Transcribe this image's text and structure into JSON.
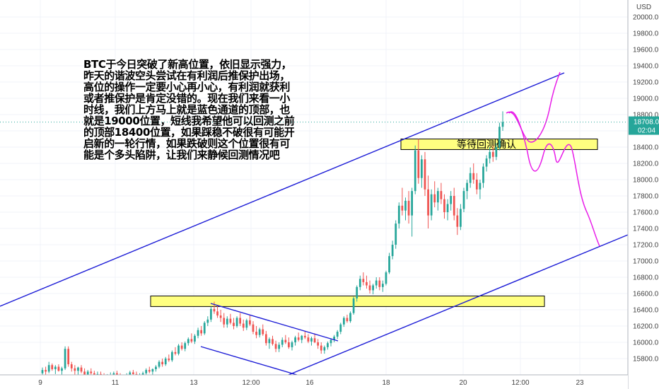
{
  "chart_data": {
    "type": "candlestick",
    "symbol": "BTCUSD",
    "currency_label": "USD",
    "price_axis": {
      "min": 15700,
      "max": 20350,
      "ticks": [
        15800,
        16000,
        16200,
        16400,
        16600,
        16800,
        17000,
        17200,
        17400,
        17600,
        17800,
        18000,
        18200,
        18400,
        18600,
        18800,
        19000,
        19200,
        19400,
        19600,
        19800,
        20000
      ],
      "tick_labels": [
        "15800.0",
        "16000.0",
        "16200.0",
        "16400.0",
        "16600.0",
        "16800.0",
        "17000.0",
        "17200.0",
        "17400.0",
        "17600.0",
        "17800.0",
        "18000.0",
        "18200.0",
        "18400.0",
        "18600.0",
        "18800.0",
        "19000.0",
        "19200.0",
        "19400.0",
        "19600.0",
        "19800.0",
        "20000.0"
      ],
      "current_price": 18708.0,
      "current_price_label": "18708.0",
      "countdown_label": "02:04"
    },
    "time_axis": {
      "labels": [
        "9",
        "11",
        "13",
        "12:00",
        "16",
        "18",
        "20",
        "12:00",
        "23"
      ]
    },
    "annotation_text": "BTC于今日突破了新高位置，依旧显示强力，昨天的谐波空头尝试在有利润后推保护出场，高位的操作一定要小心再小心，有利润就获利或者推保护是肯定没错的。现在我们来看一小时线，我们上方马上就是蓝色通道的顶部，也就是19000位置，短线我希望他可以回测之前的顶部18400位置，如果踩稳不破很有可能开启新的一轮行情，如果跌破则这个位置很有可能是个多头陷阱，让我们来静候回测情况吧",
    "zones": [
      {
        "low": 18370,
        "high": 18500,
        "label": "等待回测确认"
      },
      {
        "low": 16440,
        "high": 16570,
        "label": ""
      }
    ],
    "candles": [
      [
        15620,
        15690,
        15560,
        15660
      ],
      [
        15660,
        15700,
        15600,
        15640
      ],
      [
        15640,
        15760,
        15620,
        15720
      ],
      [
        15720,
        15740,
        15650,
        15670
      ],
      [
        15670,
        15720,
        15610,
        15700
      ],
      [
        15700,
        15730,
        15640,
        15650
      ],
      [
        15650,
        15700,
        15580,
        15680
      ],
      [
        15680,
        15950,
        15660,
        15920
      ],
      [
        15920,
        15950,
        15700,
        15730
      ],
      [
        15730,
        15760,
        15640,
        15680
      ],
      [
        15680,
        15720,
        15600,
        15650
      ],
      [
        15650,
        15700,
        15580,
        15690
      ],
      [
        15690,
        15720,
        15620,
        15640
      ],
      [
        15640,
        15680,
        15560,
        15600
      ],
      [
        15600,
        15660,
        15560,
        15640
      ],
      [
        15640,
        15680,
        15580,
        15620
      ],
      [
        15620,
        15650,
        15540,
        15580
      ],
      [
        15580,
        15640,
        15540,
        15610
      ],
      [
        15610,
        15640,
        15560,
        15590
      ],
      [
        15590,
        15620,
        15530,
        15560
      ],
      [
        15560,
        15610,
        15520,
        15590
      ],
      [
        15590,
        15630,
        15550,
        15600
      ],
      [
        15600,
        15640,
        15560,
        15620
      ],
      [
        15620,
        15650,
        15570,
        15590
      ],
      [
        15590,
        15620,
        15540,
        15560
      ],
      [
        15560,
        15600,
        15520,
        15580
      ],
      [
        15580,
        15620,
        15540,
        15600
      ],
      [
        15600,
        15650,
        15570,
        15630
      ],
      [
        15630,
        15660,
        15580,
        15610
      ],
      [
        15610,
        15640,
        15560,
        15580
      ],
      [
        15580,
        15620,
        15540,
        15600
      ],
      [
        15600,
        15640,
        15570,
        15620
      ],
      [
        15620,
        15680,
        15600,
        15660
      ],
      [
        15660,
        15700,
        15620,
        15640
      ],
      [
        15640,
        15680,
        15600,
        15670
      ],
      [
        15670,
        15720,
        15640,
        15700
      ],
      [
        15700,
        15780,
        15680,
        15760
      ],
      [
        15760,
        15800,
        15700,
        15730
      ],
      [
        15730,
        15820,
        15710,
        15800
      ],
      [
        15800,
        15850,
        15760,
        15780
      ],
      [
        15780,
        15900,
        15760,
        15880
      ],
      [
        15880,
        15940,
        15840,
        15860
      ],
      [
        15860,
        15980,
        15840,
        15960
      ],
      [
        15960,
        16000,
        15900,
        15920
      ],
      [
        15920,
        16010,
        15890,
        15990
      ],
      [
        15990,
        16060,
        15960,
        16040
      ],
      [
        16040,
        16110,
        15990,
        16010
      ],
      [
        16010,
        16100,
        15980,
        16080
      ],
      [
        16080,
        16180,
        16050,
        16150
      ],
      [
        16150,
        16200,
        16080,
        16110
      ],
      [
        16110,
        16260,
        16090,
        16240
      ],
      [
        16240,
        16320,
        16200,
        16280
      ],
      [
        16280,
        16440,
        16250,
        16410
      ],
      [
        16410,
        16500,
        16350,
        16380
      ],
      [
        16380,
        16460,
        16300,
        16330
      ],
      [
        16330,
        16400,
        16250,
        16300
      ],
      [
        16300,
        16360,
        16180,
        16220
      ],
      [
        16220,
        16320,
        16180,
        16290
      ],
      [
        16290,
        16350,
        16220,
        16240
      ],
      [
        16240,
        16300,
        16160,
        16200
      ],
      [
        16200,
        16320,
        16180,
        16300
      ],
      [
        16300,
        16360,
        16200,
        16230
      ],
      [
        16230,
        16280,
        16140,
        16180
      ],
      [
        16180,
        16290,
        16150,
        16270
      ],
      [
        16270,
        16330,
        16200,
        16220
      ],
      [
        16220,
        16260,
        16100,
        16130
      ],
      [
        16130,
        16200,
        16050,
        16090
      ],
      [
        16090,
        16180,
        16060,
        16160
      ],
      [
        16160,
        16220,
        16080,
        16100
      ],
      [
        16100,
        16140,
        15960,
        15990
      ],
      [
        15990,
        16060,
        15920,
        16040
      ],
      [
        16040,
        16080,
        15960,
        15980
      ],
      [
        15980,
        16020,
        15880,
        15920
      ],
      [
        15920,
        16000,
        15880,
        15970
      ],
      [
        15970,
        16060,
        15940,
        16030
      ],
      [
        16030,
        16090,
        15980,
        16000
      ],
      [
        16000,
        16060,
        15920,
        15940
      ],
      [
        15940,
        16020,
        15900,
        16000
      ],
      [
        16000,
        16080,
        15960,
        16060
      ],
      [
        16060,
        16120,
        16010,
        16030
      ],
      [
        16030,
        16090,
        15990,
        16080
      ],
      [
        16080,
        16140,
        16040,
        16060
      ],
      [
        16060,
        16100,
        15990,
        16010
      ],
      [
        16010,
        16070,
        15960,
        16050
      ],
      [
        16050,
        16110,
        15990,
        16000
      ],
      [
        16000,
        16040,
        15920,
        15960
      ],
      [
        15960,
        16000,
        15860,
        15900
      ],
      [
        15900,
        15960,
        15860,
        15940
      ],
      [
        15940,
        16010,
        15910,
        15990
      ],
      [
        15990,
        16050,
        15950,
        16030
      ],
      [
        16030,
        16090,
        16000,
        16070
      ],
      [
        16070,
        16150,
        16040,
        16130
      ],
      [
        16130,
        16240,
        16100,
        16220
      ],
      [
        16220,
        16320,
        16190,
        16300
      ],
      [
        16300,
        16340,
        16240,
        16260
      ],
      [
        16260,
        16380,
        16240,
        16360
      ],
      [
        16360,
        16560,
        16340,
        16540
      ],
      [
        16540,
        16700,
        16500,
        16680
      ],
      [
        16680,
        16820,
        16640,
        16780
      ],
      [
        16780,
        16860,
        16700,
        16740
      ],
      [
        16740,
        16820,
        16660,
        16700
      ],
      [
        16700,
        16760,
        16600,
        16640
      ],
      [
        16640,
        16720,
        16590,
        16700
      ],
      [
        16700,
        16800,
        16660,
        16760
      ],
      [
        16760,
        16800,
        16640,
        16680
      ],
      [
        16680,
        16760,
        16620,
        16720
      ],
      [
        16720,
        16880,
        16700,
        16860
      ],
      [
        16860,
        17100,
        16840,
        17060
      ],
      [
        17060,
        17250,
        17020,
        17200
      ],
      [
        17200,
        17500,
        17150,
        17460
      ],
      [
        17460,
        17720,
        17400,
        17680
      ],
      [
        17680,
        17900,
        17560,
        17620
      ],
      [
        17620,
        17780,
        17500,
        17740
      ],
      [
        17740,
        17860,
        17460,
        17560
      ],
      [
        17560,
        17900,
        17300,
        17860
      ],
      [
        17860,
        18420,
        17820,
        18360
      ],
      [
        18360,
        18500,
        17950,
        18020
      ],
      [
        18020,
        18300,
        17900,
        18250
      ],
      [
        18250,
        18340,
        17800,
        17880
      ],
      [
        17880,
        18050,
        17400,
        17560
      ],
      [
        17560,
        17880,
        17500,
        17820
      ],
      [
        17820,
        17980,
        17660,
        17720
      ],
      [
        17720,
        17900,
        17620,
        17860
      ],
      [
        17860,
        17960,
        17700,
        17760
      ],
      [
        17760,
        17820,
        17520,
        17600
      ],
      [
        17600,
        17760,
        17500,
        17700
      ],
      [
        17700,
        17860,
        17620,
        17800
      ],
      [
        17800,
        17900,
        17500,
        17560
      ],
      [
        17560,
        17650,
        17320,
        17420
      ],
      [
        17420,
        17700,
        17380,
        17640
      ],
      [
        17640,
        17900,
        17600,
        17860
      ],
      [
        17860,
        18000,
        17760,
        17960
      ],
      [
        17960,
        18150,
        17900,
        18080
      ],
      [
        18080,
        18200,
        17950,
        18000
      ],
      [
        18000,
        18080,
        17820,
        17880
      ],
      [
        17880,
        18000,
        17760,
        17960
      ],
      [
        17960,
        18200,
        17900,
        18160
      ],
      [
        18160,
        18300,
        18100,
        18260
      ],
      [
        18260,
        18400,
        18200,
        18340
      ],
      [
        18340,
        18420,
        18220,
        18280
      ],
      [
        18280,
        18450,
        18240,
        18400
      ],
      [
        18400,
        18700,
        18360,
        18650
      ],
      [
        18650,
        18840,
        18600,
        18708
      ]
    ]
  }
}
